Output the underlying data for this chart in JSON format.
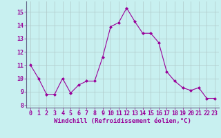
{
  "x": [
    0,
    1,
    2,
    3,
    4,
    5,
    6,
    7,
    8,
    9,
    10,
    11,
    12,
    13,
    14,
    15,
    16,
    17,
    18,
    19,
    20,
    21,
    22,
    23
  ],
  "y": [
    11.0,
    10.0,
    8.8,
    8.8,
    10.0,
    8.9,
    9.5,
    9.8,
    9.8,
    11.6,
    13.9,
    14.2,
    15.3,
    14.3,
    13.4,
    13.4,
    12.7,
    10.5,
    9.8,
    9.3,
    9.1,
    9.3,
    8.5,
    8.5
  ],
  "line_color": "#990099",
  "marker": "D",
  "marker_size": 2.0,
  "bg_color": "#c8f0f0",
  "grid_color": "#b0c8c8",
  "xlabel": "Windchill (Refroidissement éolien,°C)",
  "xlabel_color": "#990099",
  "tick_color": "#990099",
  "xlim": [
    -0.5,
    23.5
  ],
  "ylim": [
    7.8,
    15.8
  ],
  "yticks": [
    8,
    9,
    10,
    11,
    12,
    13,
    14,
    15
  ],
  "xticks": [
    0,
    1,
    2,
    3,
    4,
    5,
    6,
    7,
    8,
    9,
    10,
    11,
    12,
    13,
    14,
    15,
    16,
    17,
    18,
    19,
    20,
    21,
    22,
    23
  ],
  "font_size_xlabel": 6.5,
  "font_size_ticks": 6.0,
  "line_width": 0.8
}
